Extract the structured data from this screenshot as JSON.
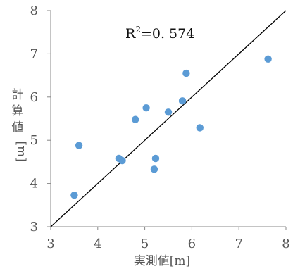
{
  "chart_data": {
    "type": "scatter",
    "title": "",
    "xlabel": "実測値[m]",
    "ylabel_chars": [
      "計",
      "算",
      "値",
      "[m]"
    ],
    "xlim": [
      3,
      8
    ],
    "ylim": [
      3,
      8
    ],
    "x_ticks": [
      "3",
      "4",
      "5",
      "6",
      "7",
      "8"
    ],
    "y_ticks": [
      "3",
      "4",
      "5",
      "6",
      "7",
      "8"
    ],
    "annotation": {
      "base": "R",
      "sup": "2",
      "rest": "=0. 574"
    },
    "reference_line": {
      "from": [
        3,
        3
      ],
      "to": [
        8,
        8
      ],
      "color": "#000000"
    },
    "marker_color": "#5b9bd5",
    "points": [
      {
        "x": 3.5,
        "y": 3.73
      },
      {
        "x": 3.6,
        "y": 4.88
      },
      {
        "x": 4.45,
        "y": 4.58
      },
      {
        "x": 4.52,
        "y": 4.53
      },
      {
        "x": 4.8,
        "y": 5.48
      },
      {
        "x": 5.03,
        "y": 5.75
      },
      {
        "x": 5.2,
        "y": 4.33
      },
      {
        "x": 5.23,
        "y": 4.58
      },
      {
        "x": 5.5,
        "y": 5.65
      },
      {
        "x": 5.8,
        "y": 5.91
      },
      {
        "x": 5.88,
        "y": 6.55
      },
      {
        "x": 6.17,
        "y": 5.29
      },
      {
        "x": 7.62,
        "y": 6.88
      }
    ]
  }
}
